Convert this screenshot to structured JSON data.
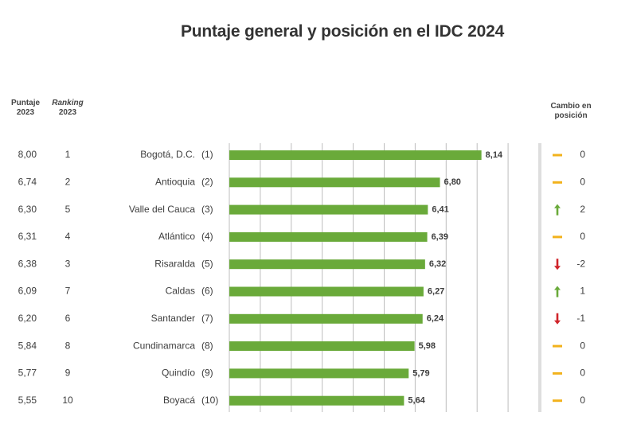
{
  "title": "Puntaje general y posición en el IDC 2024",
  "headers": {
    "score_2023": [
      "Puntaje",
      "2023"
    ],
    "ranking_2023": [
      "Ranking",
      "2023"
    ],
    "change": [
      "Cambio en",
      "posición"
    ]
  },
  "colors": {
    "bar": "#6aaa3a",
    "up": "#6aaa3a",
    "down": "#d0242a",
    "same": "#f2b21c",
    "grid": "#bdbdbd"
  },
  "chart_data": {
    "type": "bar",
    "orientation": "horizontal",
    "title": "Puntaje general y posición en el IDC 2024",
    "categories": [
      "Bogotá, D.C.",
      "Antioquia",
      "Valle del Cauca",
      "Atlántico",
      "Risaralda",
      "Caldas",
      "Santander",
      "Cundinamarca",
      "Quindío",
      "Boyacá"
    ],
    "positions_2024": [
      "(1)",
      "(2)",
      "(3)",
      "(4)",
      "(5)",
      "(6)",
      "(7)",
      "(8)",
      "(9)",
      "(10)"
    ],
    "values": [
      8.14,
      6.8,
      6.41,
      6.39,
      6.32,
      6.27,
      6.24,
      5.98,
      5.79,
      5.64
    ],
    "value_labels": [
      "8,14",
      "6,80",
      "6,41",
      "6,39",
      "6,32",
      "6,27",
      "6,24",
      "5,98",
      "5,79",
      "5,64"
    ],
    "score_2023": [
      "8,00",
      "6,74",
      "6,30",
      "6,31",
      "6,38",
      "6,09",
      "6,20",
      "5,84",
      "5,77",
      "5,55"
    ],
    "ranking_2023": [
      "1",
      "2",
      "5",
      "4",
      "3",
      "7",
      "6",
      "8",
      "9",
      "10"
    ],
    "change_direction": [
      "same",
      "same",
      "up",
      "same",
      "down",
      "up",
      "down",
      "same",
      "same",
      "same"
    ],
    "change_values": [
      "0",
      "0",
      "2",
      "0",
      "-2",
      "1",
      "-1",
      "0",
      "0",
      "0"
    ],
    "xlim": [
      0,
      10
    ],
    "grid": true
  }
}
